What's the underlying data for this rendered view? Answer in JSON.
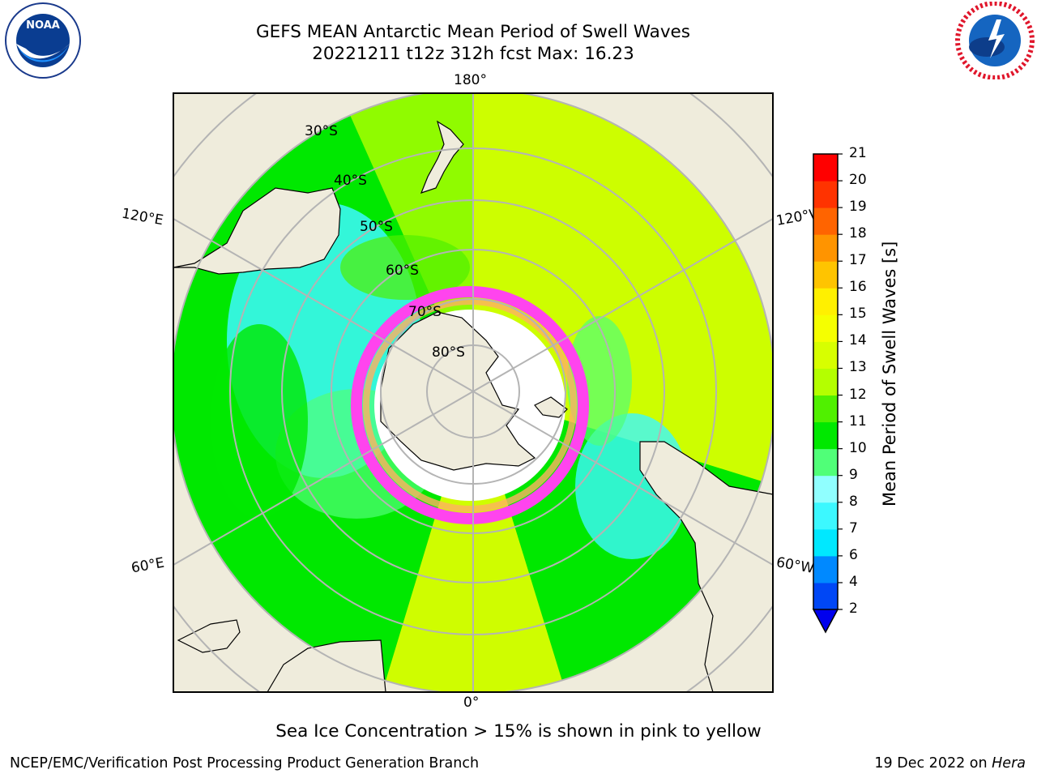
{
  "header": {
    "title_line1": "GEFS MEAN Antarctic Mean Period of Swell Waves",
    "title_line2": "20221211 t12z 312h fcst   Max: 16.23"
  },
  "logos": {
    "left": {
      "icon": "noaa-logo",
      "text": "NOAA",
      "ring_text": "NATIONAL OCEANIC AND ATMOSPHERIC ADMINISTRATION · U.S. DEPARTMENT OF COMMERCE"
    },
    "right": {
      "icon": "nws-logo",
      "ring_text": "NATIONAL WEATHER SERVICE"
    }
  },
  "map": {
    "projection": "south-polar-stereographic",
    "lon_labels": {
      "top": "180°",
      "bottom": "0°",
      "left_upper": "120°E",
      "left_lower": "60°E",
      "right_upper": "120°W",
      "right_lower": "60°W"
    },
    "lat_labels": [
      "30°S",
      "40°S",
      "50°S",
      "60°S",
      "70°S",
      "80°S"
    ],
    "colors": {
      "land": "#efecdc",
      "ice_interior": "#ffffff",
      "grid": "#b4b4b4",
      "ice_edge": "#ff44ee"
    }
  },
  "colorbar": {
    "label": "Mean Period of Swell Waves [s]",
    "ticks": [
      "2",
      "4",
      "6",
      "7",
      "8",
      "9",
      "10",
      "11",
      "12",
      "13",
      "14",
      "15",
      "16",
      "17",
      "18",
      "19",
      "20",
      "21"
    ],
    "colors": [
      "#0047f5",
      "#0089ff",
      "#00e8ff",
      "#3cf8ff",
      "#90ffff",
      "#50ff78",
      "#00e800",
      "#50f000",
      "#b4ff00",
      "#d7ff00",
      "#f5ff00",
      "#fff000",
      "#ffc400",
      "#ff9400",
      "#ff6400",
      "#ff3300",
      "#ff0000"
    ],
    "under_color": "#0000ee"
  },
  "note": "Sea Ice Concentration > 15% is shown in pink to yellow",
  "footer": {
    "left": "NCEP/EMC/Verification Post Processing Product Generation Branch",
    "right_date": "19 Dec 2022 on ",
    "right_machine": "Hera"
  }
}
